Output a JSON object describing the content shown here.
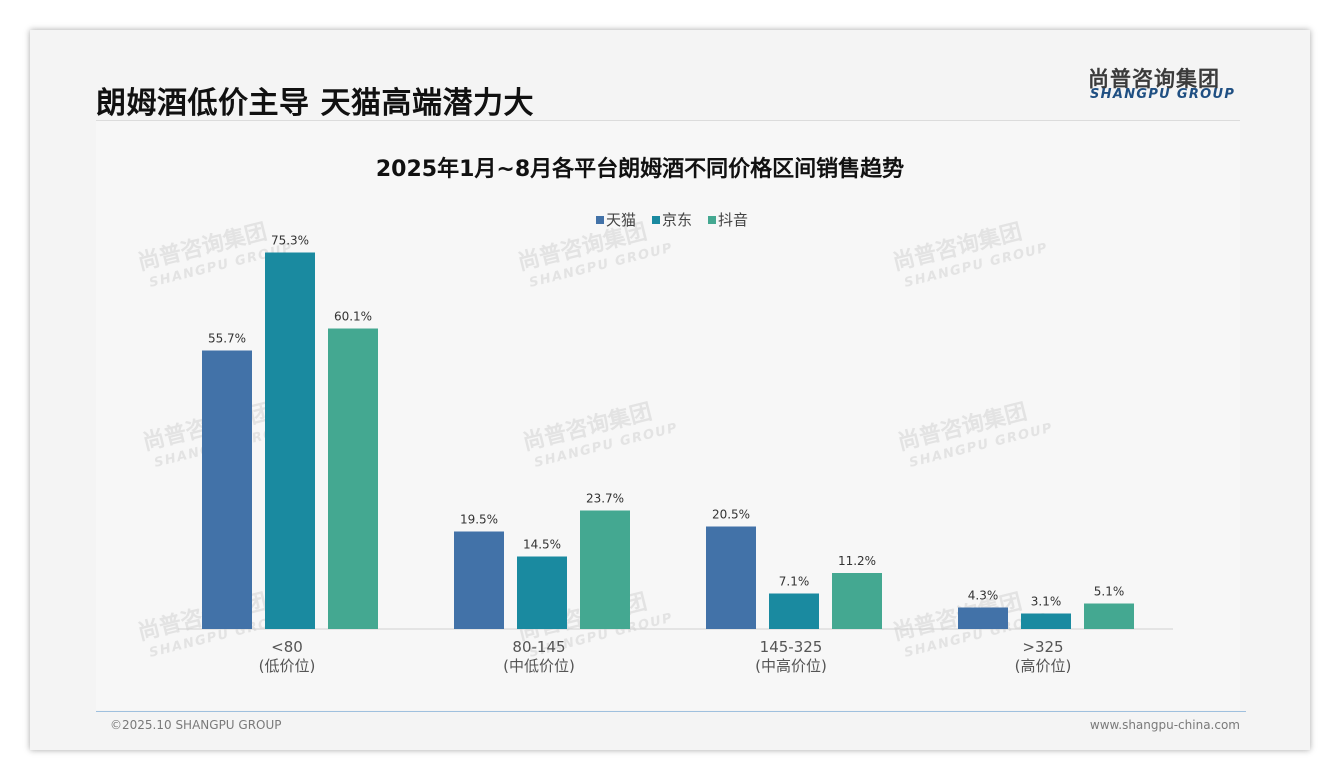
{
  "page": {
    "title": "朗姆酒低价主导 天猫高端潜力大",
    "logo_cn": "尚普咨询集团",
    "logo_en": "SHANGPU GROUP",
    "footer_left": "©2025.10 SHANGPU GROUP",
    "footer_right": "www.shangpu-china.com",
    "watermark_cn": "尚普咨询集团",
    "watermark_en": "SHANGPU GROUP"
  },
  "colors": {
    "tmall": "#4272a8",
    "jd": "#1a8aa0",
    "douyin": "#44a891",
    "axis": "#d0d0d0",
    "label": "#333333"
  },
  "chart_data": {
    "type": "bar",
    "title": "2025年1月~8月各平台朗姆酒不同价格区间销售趋势",
    "categories": [
      "<80",
      "80-145",
      "145-325",
      ">325"
    ],
    "category_sublabels": [
      "(低价位)",
      "(中低价位)",
      "(中高价位)",
      "(高价位)"
    ],
    "series": [
      {
        "name": "天猫",
        "values": [
          55.7,
          19.5,
          20.5,
          4.3
        ],
        "labels": [
          "55.7%",
          "19.5%",
          "20.5%",
          "4.3%"
        ]
      },
      {
        "name": "京东",
        "values": [
          75.3,
          14.5,
          7.1,
          3.1
        ],
        "labels": [
          "75.3%",
          "14.5%",
          "7.1%",
          "3.1%"
        ]
      },
      {
        "name": "抖音",
        "values": [
          60.1,
          23.7,
          11.2,
          5.1
        ],
        "labels": [
          "60.1%",
          "23.7%",
          "11.2%",
          "5.1%"
        ]
      }
    ],
    "ylim": [
      0,
      80
    ],
    "legend": "top-center",
    "grid": false
  }
}
